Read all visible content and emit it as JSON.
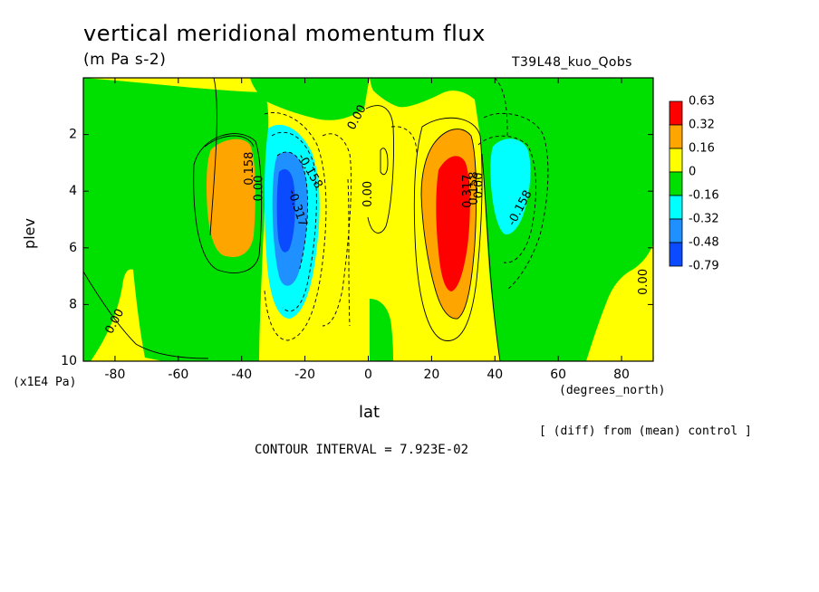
{
  "figure": {
    "title": "vertical meridional momentum flux",
    "units": "(m Pa s-2)",
    "run_label": "T39L48_kuo_Qobs",
    "y_label": "plev",
    "y_unit": "(x1E4 Pa)",
    "x_label": "lat",
    "x_unit": "(degrees_north)",
    "diff_note": "[ (diff) from (mean) control ]",
    "contour_interval": "CONTOUR INTERVAL = 7.923E-02"
  },
  "colors": {
    "red": "#ff0000",
    "orange": "#ffa500",
    "yellow": "#ffff00",
    "green": "#00e000",
    "cyan": "#00ffff",
    "mid_blue": "#1e90ff",
    "dark_blue": "#0a4bff"
  },
  "chart_data": {
    "type": "filled-contour",
    "x": {
      "range": [
        -90,
        90
      ],
      "ticks": [
        -80,
        -60,
        -40,
        -20,
        0,
        20,
        40,
        60,
        80
      ],
      "tick_labels": [
        "-80",
        "-60",
        "-40",
        "-20",
        "0",
        "20",
        "40",
        "60",
        "80"
      ]
    },
    "y": {
      "range": [
        0,
        10
      ],
      "inverted": true,
      "ticks": [
        2,
        4,
        6,
        8,
        10
      ],
      "tick_labels": [
        "2",
        "4",
        "6",
        "8",
        "10"
      ]
    },
    "colorbar": {
      "position": "right",
      "labels": [
        "0.63",
        "0.32",
        "0.16",
        "0",
        "-0.16",
        "-0.32",
        "-0.48",
        "-0.79"
      ],
      "levels": [
        {
          "color": "red",
          "range": [
            0.32,
            0.63
          ]
        },
        {
          "color": "orange",
          "range": [
            0.16,
            0.32
          ]
        },
        {
          "color": "yellow",
          "range": [
            0,
            0.16
          ]
        },
        {
          "color": "green",
          "range": [
            -0.16,
            0
          ]
        },
        {
          "color": "cyan",
          "range": [
            -0.32,
            -0.16
          ]
        },
        {
          "color": "mid_blue",
          "range": [
            -0.48,
            -0.32
          ]
        },
        {
          "color": "dark_blue",
          "range": [
            -0.79,
            -0.48
          ]
        }
      ]
    },
    "contour_labels": [
      {
        "text": "0.00",
        "lat": -80,
        "p": 8.6,
        "angle": -62
      },
      {
        "text": "0.158",
        "lat": -37.5,
        "p": 3.2,
        "angle": -90
      },
      {
        "text": "0.00",
        "lat": -34.5,
        "p": 3.9,
        "angle": -90
      },
      {
        "text": "-0.158",
        "lat": -18.5,
        "p": 3.3,
        "angle": 60
      },
      {
        "text": "-0.317",
        "lat": -22.5,
        "p": 4.6,
        "angle": 72
      },
      {
        "text": "0.00",
        "lat": -3.5,
        "p": 1.4,
        "angle": -62
      },
      {
        "text": "0.00",
        "lat": 0,
        "p": 4.1,
        "angle": -90
      },
      {
        "text": "0.317",
        "lat": 31.5,
        "p": 4.0,
        "angle": -90
      },
      {
        "text": "0.158",
        "lat": 33.5,
        "p": 3.9,
        "angle": -90
      },
      {
        "text": "0.00",
        "lat": 35,
        "p": 3.8,
        "angle": -90
      },
      {
        "text": "-0.158",
        "lat": 48,
        "p": 4.6,
        "angle": -62
      },
      {
        "text": "0.00",
        "lat": 87,
        "p": 7.2,
        "angle": -90
      }
    ]
  }
}
